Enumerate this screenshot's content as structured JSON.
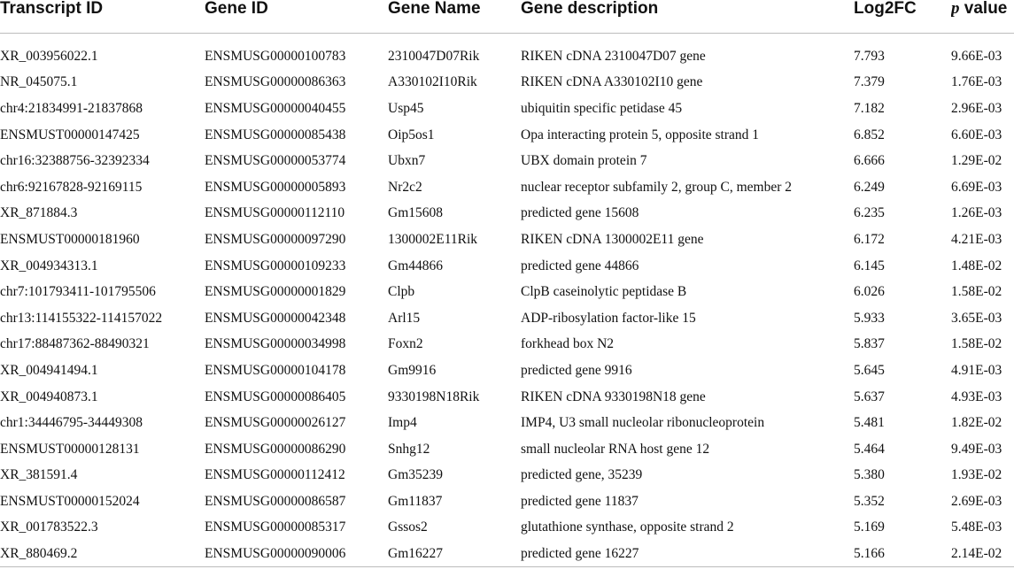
{
  "table": {
    "headers": {
      "transcript_id": "Transcript ID",
      "gene_id": "Gene ID",
      "gene_name": "Gene Name",
      "gene_description": "Gene description",
      "log2fc": "Log2FC",
      "p_value_p": "p",
      "p_value_rest": " value"
    },
    "rows": [
      {
        "transcript_id": "XR_003956022.1",
        "gene_id": "ENSMUSG00000100783",
        "gene_name": "2310047D07Rik",
        "description": "RIKEN cDNA 2310047D07 gene",
        "log2fc": "7.793",
        "p_value": "9.66E-03"
      },
      {
        "transcript_id": "NR_045075.1",
        "gene_id": "ENSMUSG00000086363",
        "gene_name": "A330102I10Rik",
        "description": "RIKEN cDNA A330102I10 gene",
        "log2fc": "7.379",
        "p_value": "1.76E-03"
      },
      {
        "transcript_id": "chr4:21834991-21837868",
        "gene_id": "ENSMUSG00000040455",
        "gene_name": "Usp45",
        "description": "ubiquitin specific petidase 45",
        "log2fc": "7.182",
        "p_value": "2.96E-03"
      },
      {
        "transcript_id": "ENSMUST00000147425",
        "gene_id": "ENSMUSG00000085438",
        "gene_name": "Oip5os1",
        "description": "Opa interacting protein 5, opposite strand 1",
        "log2fc": "6.852",
        "p_value": "6.60E-03"
      },
      {
        "transcript_id": "chr16:32388756-32392334",
        "gene_id": "ENSMUSG00000053774",
        "gene_name": "Ubxn7",
        "description": "UBX domain protein 7",
        "log2fc": "6.666",
        "p_value": "1.29E-02"
      },
      {
        "transcript_id": "chr6:92167828-92169115",
        "gene_id": "ENSMUSG00000005893",
        "gene_name": "Nr2c2",
        "description": "nuclear receptor subfamily 2, group C, member 2",
        "log2fc": "6.249",
        "p_value": "6.69E-03"
      },
      {
        "transcript_id": "XR_871884.3",
        "gene_id": "ENSMUSG00000112110",
        "gene_name": "Gm15608",
        "description": "predicted gene 15608",
        "log2fc": "6.235",
        "p_value": "1.26E-03"
      },
      {
        "transcript_id": "ENSMUST00000181960",
        "gene_id": "ENSMUSG00000097290",
        "gene_name": "1300002E11Rik",
        "description": "RIKEN cDNA 1300002E11 gene",
        "log2fc": "6.172",
        "p_value": "4.21E-03"
      },
      {
        "transcript_id": "XR_004934313.1",
        "gene_id": "ENSMUSG00000109233",
        "gene_name": "Gm44866",
        "description": "predicted gene 44866",
        "log2fc": "6.145",
        "p_value": "1.48E-02"
      },
      {
        "transcript_id": "chr7:101793411-101795506",
        "gene_id": "ENSMUSG00000001829",
        "gene_name": "Clpb",
        "description": "ClpB caseinolytic peptidase B",
        "log2fc": "6.026",
        "p_value": "1.58E-02"
      },
      {
        "transcript_id": "chr13:114155322-114157022",
        "gene_id": "ENSMUSG00000042348",
        "gene_name": "Arl15",
        "description": "ADP-ribosylation factor-like 15",
        "log2fc": "5.933",
        "p_value": "3.65E-03"
      },
      {
        "transcript_id": "chr17:88487362-88490321",
        "gene_id": "ENSMUSG00000034998",
        "gene_name": "Foxn2",
        "description": "forkhead box N2",
        "log2fc": "5.837",
        "p_value": "1.58E-02"
      },
      {
        "transcript_id": "XR_004941494.1",
        "gene_id": "ENSMUSG00000104178",
        "gene_name": "Gm9916",
        "description": "predicted gene 9916",
        "log2fc": "5.645",
        "p_value": "4.91E-03"
      },
      {
        "transcript_id": "XR_004940873.1",
        "gene_id": "ENSMUSG00000086405",
        "gene_name": "9330198N18Rik",
        "description": "RIKEN cDNA 9330198N18 gene",
        "log2fc": "5.637",
        "p_value": "4.93E-03"
      },
      {
        "transcript_id": "chr1:34446795-34449308",
        "gene_id": "ENSMUSG00000026127",
        "gene_name": "Imp4",
        "description": "IMP4, U3 small nucleolar ribonucleoprotein",
        "log2fc": "5.481",
        "p_value": "1.82E-02"
      },
      {
        "transcript_id": "ENSMUST00000128131",
        "gene_id": "ENSMUSG00000086290",
        "gene_name": "Snhg12",
        "description": "small nucleolar RNA host gene 12",
        "log2fc": "5.464",
        "p_value": "9.49E-03"
      },
      {
        "transcript_id": "XR_381591.4",
        "gene_id": "ENSMUSG00000112412",
        "gene_name": "Gm35239",
        "description": "predicted gene, 35239",
        "log2fc": "5.380",
        "p_value": "1.93E-02"
      },
      {
        "transcript_id": "ENSMUST00000152024",
        "gene_id": "ENSMUSG00000086587",
        "gene_name": "Gm11837",
        "description": "predicted gene 11837",
        "log2fc": "5.352",
        "p_value": "2.69E-03"
      },
      {
        "transcript_id": "XR_001783522.3",
        "gene_id": "ENSMUSG00000085317",
        "gene_name": "Gssos2",
        "description": "glutathione synthase, opposite strand 2",
        "log2fc": "5.169",
        "p_value": "5.48E-03"
      },
      {
        "transcript_id": "XR_880469.2",
        "gene_id": "ENSMUSG00000090006",
        "gene_name": "Gm16227",
        "description": "predicted gene 16227",
        "log2fc": "5.166",
        "p_value": "2.14E-02"
      }
    ]
  }
}
